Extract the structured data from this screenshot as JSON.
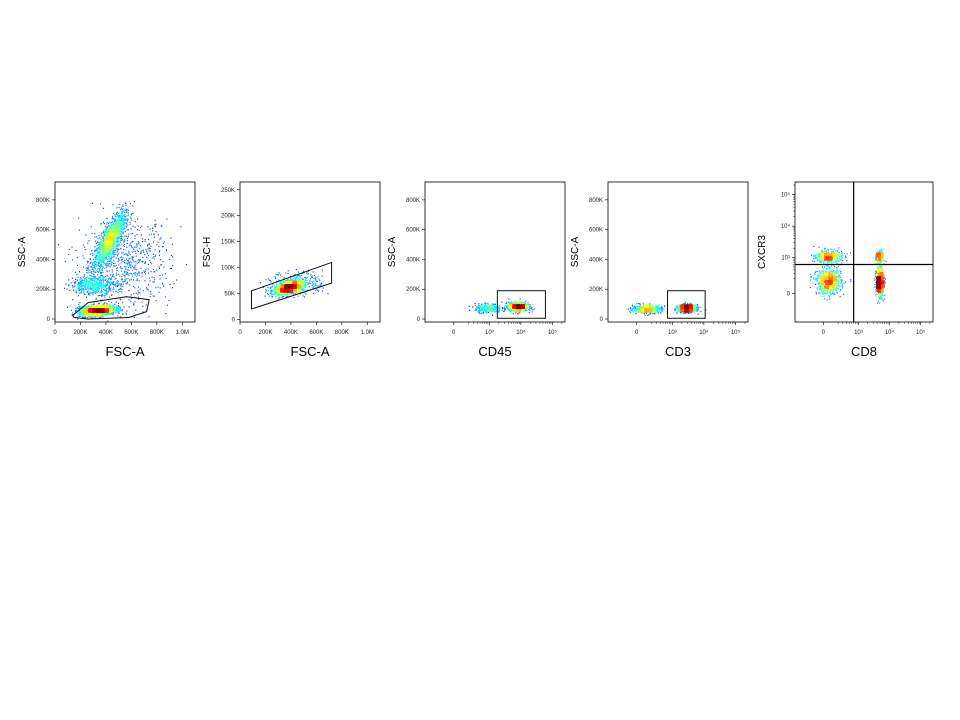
{
  "chart_data": [
    {
      "type": "scatter",
      "xlabel": "FSC-A",
      "ylabel": "SSC-A",
      "x_ticks": [
        "0",
        "200K",
        "400K",
        "600K",
        "800K",
        "1.0M"
      ],
      "y_ticks": [
        "0",
        "200K",
        "400K",
        "600K",
        "800K"
      ],
      "xlim": [
        0,
        1100000
      ],
      "ylim": [
        -20000,
        920000
      ],
      "x_scale": "linear",
      "y_scale": "linear",
      "populations": [
        {
          "center": [
            430000,
            530000
          ],
          "spread": [
            120000,
            110000
          ],
          "angle": 0.9,
          "count": 1700
        },
        {
          "center": [
            330000,
            60000
          ],
          "spread": [
            140000,
            35000
          ],
          "angle": 0.25,
          "count": 1900
        },
        {
          "center": [
            300000,
            230000
          ],
          "spread": [
            180000,
            60000
          ],
          "angle": 0.0,
          "count": 500
        },
        {
          "center": [
            550000,
            380000
          ],
          "spread": [
            350000,
            280000
          ],
          "angle": 0.0,
          "count": 700
        }
      ],
      "gate": {
        "type": "polygon",
        "points": [
          [
            140000,
            25000
          ],
          [
            260000,
            110000
          ],
          [
            560000,
            150000
          ],
          [
            740000,
            130000
          ],
          [
            720000,
            50000
          ],
          [
            580000,
            10000
          ],
          [
            260000,
            0
          ],
          [
            150000,
            10000
          ]
        ]
      }
    },
    {
      "type": "scatter",
      "xlabel": "FSC-A",
      "ylabel": "FSC-H",
      "x_ticks": [
        "0",
        "200K",
        "400K",
        "600K",
        "800K",
        "1.0M"
      ],
      "y_ticks": [
        "0",
        "50K",
        "100K",
        "150K",
        "200K",
        "250K"
      ],
      "xlim": [
        0,
        1100000
      ],
      "ylim": [
        -5000,
        265000
      ],
      "x_scale": "linear",
      "y_scale": "linear",
      "populations": [
        {
          "center": [
            380000,
            62000
          ],
          "spread": [
            120000,
            12000
          ],
          "angle": 0.5,
          "count": 1500
        },
        {
          "center": [
            450000,
            70000
          ],
          "spread": [
            200000,
            22000
          ],
          "angle": 0.0,
          "count": 300
        }
      ],
      "gate": {
        "type": "polygon",
        "points": [
          [
            90000,
            20000
          ],
          [
            90000,
            55000
          ],
          [
            720000,
            110000
          ],
          [
            720000,
            70000
          ]
        ]
      }
    },
    {
      "type": "scatter",
      "xlabel": "CD45",
      "ylabel": "SSC-A",
      "x_ticks": [
        "0",
        "10³",
        "10⁴",
        "10⁵"
      ],
      "y_ticks": [
        "0",
        "200K",
        "400K",
        "600K",
        "800K"
      ],
      "xlim": [
        -600,
        250000
      ],
      "ylim": [
        -20000,
        920000
      ],
      "x_scale": "biexponential",
      "y_scale": "linear",
      "populations": [
        {
          "center": [
            8000,
            85000
          ],
          "spread": [
            0.22,
            30000
          ],
          "angle": 0.0,
          "count": 1100
        },
        {
          "center": [
            900,
            75000
          ],
          "spread": [
            0.3,
            30000
          ],
          "angle": 0.0,
          "count": 300
        }
      ],
      "gate": {
        "type": "rectangle",
        "points": [
          [
            1800,
            5000
          ],
          [
            60000,
            190000
          ]
        ]
      }
    },
    {
      "type": "scatter",
      "xlabel": "CD3",
      "ylabel": "SSC-A",
      "x_ticks": [
        "0",
        "10³",
        "10⁴",
        "10⁵"
      ],
      "y_ticks": [
        "0",
        "200K",
        "400K",
        "600K",
        "800K"
      ],
      "xlim": [
        -600,
        250000
      ],
      "ylim": [
        -20000,
        920000
      ],
      "x_scale": "biexponential",
      "y_scale": "linear",
      "populations": [
        {
          "center": [
            2800,
            75000
          ],
          "spread": [
            0.2,
            25000
          ],
          "angle": 0.0,
          "count": 1100
        },
        {
          "center": [
            120,
            70000
          ],
          "spread": [
            0.32,
            25000
          ],
          "angle": 0.0,
          "count": 700
        }
      ],
      "gate": {
        "type": "rectangle",
        "points": [
          [
            700,
            5000
          ],
          [
            11000,
            190000
          ]
        ]
      }
    },
    {
      "type": "scatter",
      "xlabel": "CD8",
      "ylabel": "CXCR3",
      "x_ticks": [
        "0",
        "10³",
        "10⁴",
        "10⁵"
      ],
      "y_ticks": [
        "0",
        "10³",
        "10⁴",
        "10⁵"
      ],
      "xlim": [
        -600,
        250000
      ],
      "ylim": [
        -600,
        250000
      ],
      "x_scale": "biexponential",
      "y_scale": "biexponential",
      "populations": [
        {
          "center": [
            60,
            150
          ],
          "spread": [
            0.28,
            0.28
          ],
          "angle": 0.0,
          "count": 800
        },
        {
          "center": [
            60,
            1100
          ],
          "spread": [
            0.3,
            0.15
          ],
          "angle": 0.0,
          "count": 450
        },
        {
          "center": [
            4800,
            150
          ],
          "spread": [
            0.09,
            0.35
          ],
          "angle": 0.0,
          "count": 700
        },
        {
          "center": [
            4800,
            1100
          ],
          "spread": [
            0.09,
            0.15
          ],
          "angle": 0.0,
          "count": 200
        }
      ],
      "quadrant": {
        "x": 700,
        "y": 600
      }
    }
  ]
}
